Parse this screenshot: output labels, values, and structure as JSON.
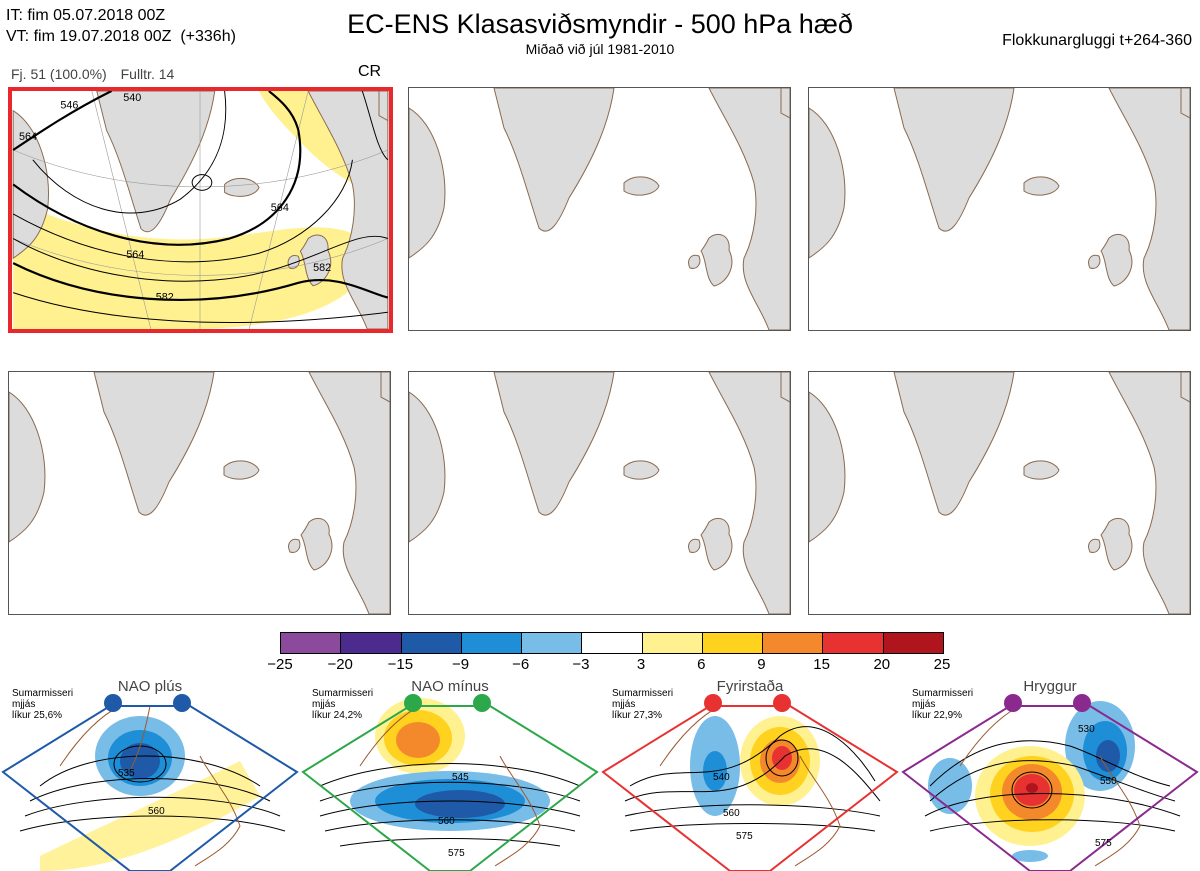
{
  "header": {
    "it": "IT: fim 05.07.2018 00Z",
    "vt": "VT: fim 19.07.2018 00Z  (+336h)",
    "title": "EC-ENS Klasasviðsmyndir - 500 hPa hæð",
    "subtitle": "Miðað við júl 1981-2010",
    "window": "Flokkunargluggi t+264-360"
  },
  "cluster_info": {
    "count": "Fj. 51 (100.0%)",
    "rep": "Fulltr. 14",
    "regime": "CR"
  },
  "main_map": {
    "contour_labels": [
      "564",
      "546",
      "564",
      "582",
      "564",
      "582",
      "540"
    ]
  },
  "colorbar": {
    "colors": [
      "#8b4a9c",
      "#4b2c8e",
      "#1e5aa8",
      "#1e8ed6",
      "#78bce8",
      "#ffffff",
      "#fff18f",
      "#ffd21f",
      "#f4892c",
      "#e83232",
      "#b0141c"
    ],
    "labels": [
      "−25",
      "−20",
      "−15",
      "−9",
      "−6",
      "−3",
      "3",
      "6",
      "9",
      "15",
      "20",
      "25"
    ]
  },
  "regimes": [
    {
      "name": "NAO plús",
      "season": "Sumarmisseri",
      "smooth": "mjjás",
      "prob": "líkur 25,6%",
      "color": "#1e5aa8",
      "labels": [
        "535",
        "560"
      ]
    },
    {
      "name": "NAO mínus",
      "season": "Sumarmisseri",
      "smooth": "mjjás",
      "prob": "líkur 24,2%",
      "color": "#2ca84a",
      "labels": [
        "545",
        "560",
        "575"
      ]
    },
    {
      "name": "Fyrirstaða",
      "season": "Sumarmisseri",
      "smooth": "mjjás",
      "prob": "líkur 27,3%",
      "color": "#e83232",
      "labels": [
        "540",
        "560",
        "575"
      ]
    },
    {
      "name": "Hryggur",
      "season": "Sumarmisseri",
      "smooth": "mjjás",
      "prob": "líkur 22,9%",
      "color": "#8b2a8e",
      "labels": [
        "530",
        "550",
        "575"
      ]
    }
  ]
}
